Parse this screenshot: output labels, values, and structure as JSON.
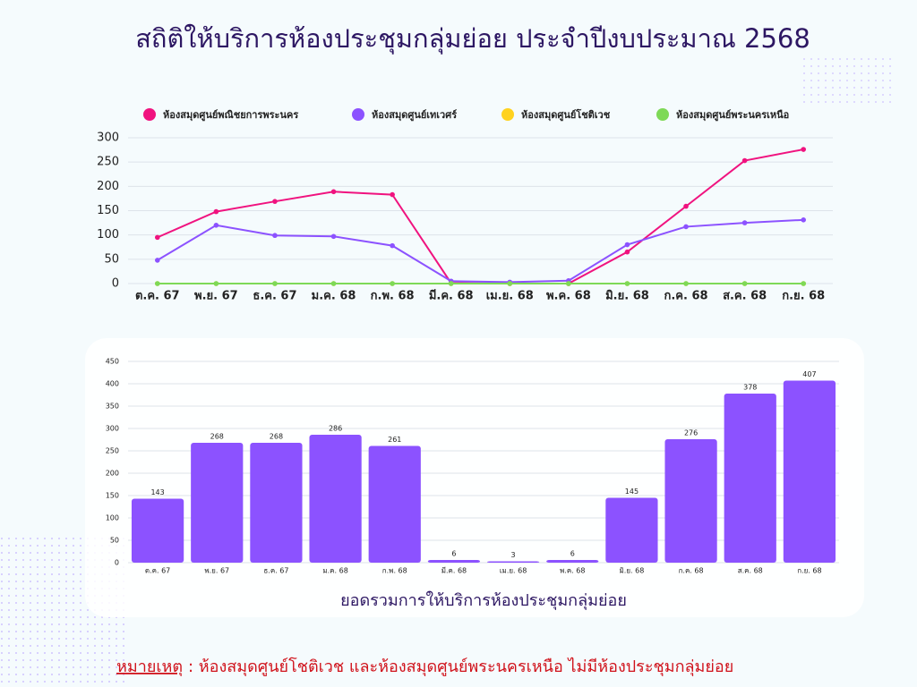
{
  "title": "สถิติให้บริการห้องประชุมกลุ่มย่อย ประจำปีงบประมาณ 2568",
  "chart_data": [
    {
      "type": "line",
      "categories": [
        "ต.ค. 67",
        "พ.ย. 67",
        "ธ.ค. 67",
        "ม.ค. 68",
        "ก.พ. 68",
        "มี.ค. 68",
        "เม.ย. 68",
        "พ.ค. 68",
        "มิ.ย. 68",
        "ก.ค. 68",
        "ส.ค. 68",
        "ก.ย. 68"
      ],
      "series": [
        {
          "name": "ห้องสมุดศูนย์พณิชยการพระนคร",
          "color": "#f0137f",
          "values": [
            95,
            148,
            169,
            189,
            183,
            1,
            0,
            0,
            65,
            159,
            253,
            276
          ]
        },
        {
          "name": "ห้องสมุดศูนย์เทเวศร์",
          "color": "#8c52ff",
          "values": [
            48,
            120,
            99,
            97,
            78,
            5,
            3,
            6,
            80,
            117,
            125,
            131
          ]
        },
        {
          "name": "ห้องสมุดศูนย์โชติเวช",
          "color": "#ffd21f",
          "values": [
            0,
            0,
            0,
            0,
            0,
            0,
            0,
            0,
            0,
            0,
            0,
            0
          ]
        },
        {
          "name": "ห้องสมุดศูนย์พระนครเหนือ",
          "color": "#7ed957",
          "values": [
            0,
            0,
            0,
            0,
            0,
            0,
            0,
            0,
            0,
            0,
            0,
            0
          ]
        }
      ],
      "ylim": [
        0,
        300
      ],
      "yticks": [
        0,
        50,
        100,
        150,
        200,
        250,
        300
      ],
      "grid": true,
      "legend": "top"
    },
    {
      "type": "bar",
      "x_label": "ยอดรวมการให้บริการห้องประชุมกลุ่มย่อย",
      "categories": [
        "ต.ค. 67",
        "พ.ย. 67",
        "ธ.ค. 67",
        "ม.ค. 68",
        "ก.พ. 68",
        "มี.ค. 68",
        "เม.ย. 68",
        "พ.ค. 68",
        "มิ.ย. 68",
        "ก.ค. 68",
        "ส.ค. 68",
        "ก.ย. 68"
      ],
      "values": [
        143,
        268,
        268,
        286,
        261,
        6,
        3,
        6,
        145,
        276,
        378,
        407
      ],
      "color": "#8c52ff",
      "ylim": [
        0,
        450
      ],
      "yticks": [
        0,
        50,
        100,
        150,
        200,
        250,
        300,
        350,
        400,
        450
      ],
      "grid": true
    }
  ],
  "note": {
    "label": "หมายเหตุ",
    "text": ": ห้องสมุดศูนย์โชติเวช และห้องสมุดศูนย์พระนครเหนือ ไม่มีห้องประชุมกลุ่มย่อย"
  }
}
